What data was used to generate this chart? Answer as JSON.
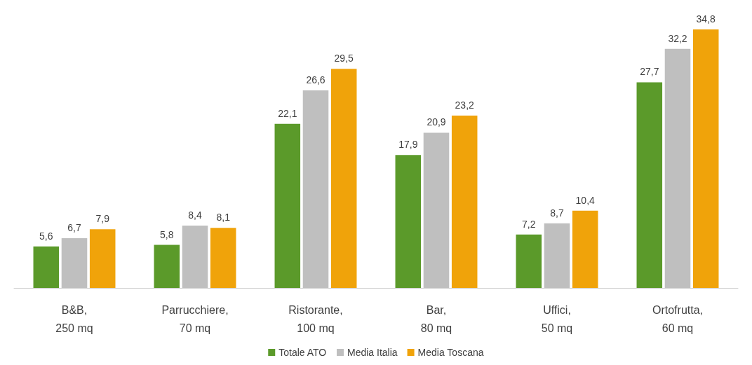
{
  "chart_data": {
    "type": "bar",
    "categories": [
      "B&B,\n250 mq",
      "Parrucchiere,\n70 mq",
      "Ristorante,\n100 mq",
      "Bar,\n80 mq",
      "Uffici,\n50 mq",
      "Ortofrutta,\n60 mq"
    ],
    "series": [
      {
        "name": "Totale ATO",
        "color": "#5b9a2a",
        "values": [
          5.6,
          5.8,
          22.1,
          17.9,
          7.2,
          27.7
        ],
        "value_labels": [
          "5,6",
          "5,8",
          "22,1",
          "17,9",
          "7,2",
          "27,7"
        ]
      },
      {
        "name": "Media Italia",
        "color": "#bfbfbf",
        "values": [
          6.7,
          8.4,
          26.6,
          20.9,
          8.7,
          32.2
        ],
        "value_labels": [
          "6,7",
          "8,4",
          "26,6",
          "20,9",
          "8,7",
          "32,2"
        ]
      },
      {
        "name": "Media Toscana",
        "color": "#f0a30a",
        "values": [
          7.9,
          8.1,
          29.5,
          23.2,
          10.4,
          34.8
        ],
        "value_labels": [
          "7,9",
          "8,1",
          "29,5",
          "23,2",
          "10,4",
          "34,8"
        ]
      }
    ],
    "legend": "bottom"
  }
}
